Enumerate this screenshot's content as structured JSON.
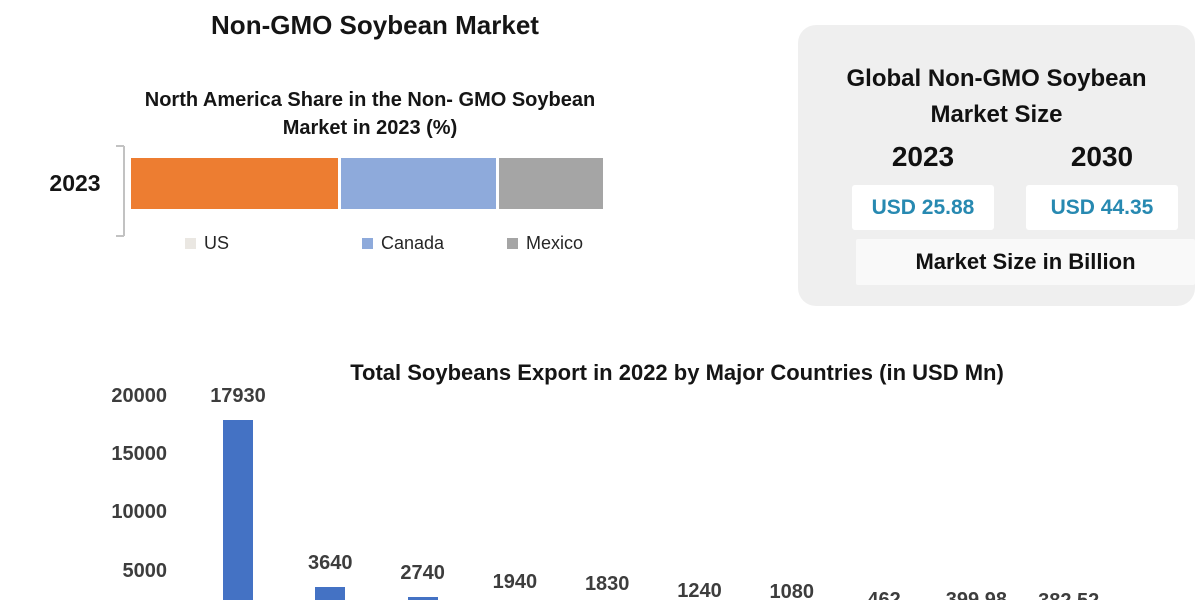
{
  "page": {
    "title": "Non-GMO Soybean Market",
    "background": "#ffffff"
  },
  "share_chart": {
    "title_line1": "North America Share in the Non- GMO Soybean",
    "title_line2": "Market in 2023 (%)",
    "category_label": "2023"
  },
  "market_size_card": {
    "title_line1": "Global Non-GMO Soybean",
    "title_line2": "Market Size",
    "year_left": "2023",
    "year_right": "2030",
    "value_left": "USD 25.88",
    "value_right": "USD 44.35",
    "caption": "Market Size in Billion",
    "value_color": "#2789b1",
    "card_bg": "#efefef"
  },
  "chart_data": [
    {
      "type": "bar",
      "subtype": "stacked-horizontal-100pct",
      "title": "North America Share in the Non- GMO Soybean Market in 2023 (%)",
      "categories": [
        "2023"
      ],
      "series": [
        {
          "name": "US",
          "values": [
            44
          ],
          "color": "#ED7D31",
          "legend_marker_color": "#eae7e2"
        },
        {
          "name": "Canada",
          "values": [
            33
          ],
          "color": "#8EAADB",
          "legend_marker_color": "#8EAADB"
        },
        {
          "name": "Mexico",
          "values": [
            22
          ],
          "color": "#A5A5A5",
          "legend_marker_color": "#A5A5A5"
        }
      ],
      "unit": "%",
      "values_estimated_from_segment_widths": true,
      "legend_position": "bottom",
      "grid": false
    },
    {
      "type": "bar",
      "title": "Total Soybeans Export in 2022 by Major Countries (in USD Mn)",
      "values": [
        17930,
        3640,
        2740,
        1940,
        1830,
        1240,
        1080,
        462,
        399.98,
        382.52
      ],
      "value_labels": [
        "17930",
        "3640",
        "2740",
        "1940",
        "1830",
        "1240",
        "1080",
        "462",
        "399.98",
        "382.52"
      ],
      "x_axis_labels_visible": false,
      "ylim": [
        0,
        20000
      ],
      "yticks": [
        20000,
        15000,
        10000,
        5000
      ],
      "bar_color": "#4472C4",
      "grid": false,
      "legend_position": "none"
    }
  ]
}
